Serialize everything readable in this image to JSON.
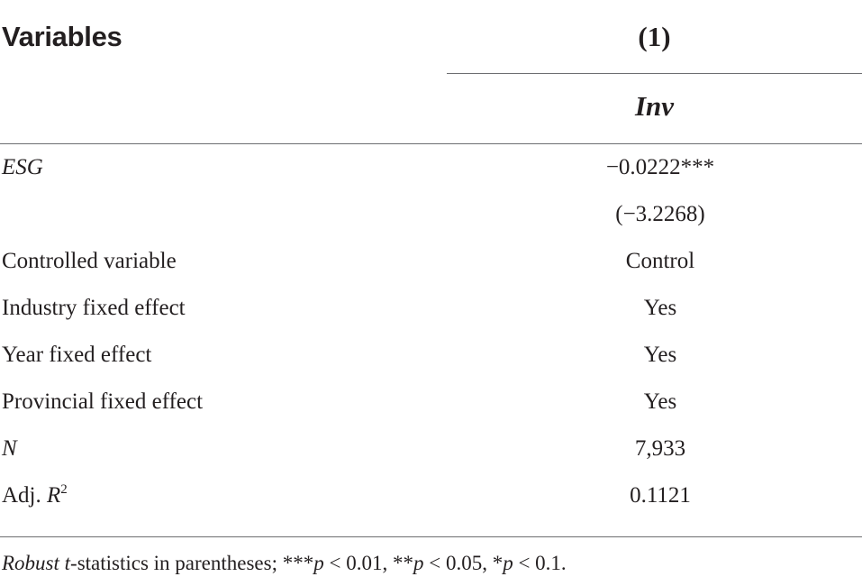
{
  "header": {
    "variables_label": "Variables",
    "column_number": "(1)",
    "dependent_variable": "Inv"
  },
  "rows": [
    {
      "label": "ESG",
      "value": "−0.0222***"
    },
    {
      "label": "",
      "value": "(−3.2268)"
    },
    {
      "label": "Controlled variable",
      "value": "Control"
    },
    {
      "label": "Industry fixed effect",
      "value": "Yes"
    },
    {
      "label": "Year fixed effect",
      "value": "Yes"
    },
    {
      "label": "Provincial fixed effect",
      "value": "Yes"
    },
    {
      "label": "N",
      "value": "7,933"
    },
    {
      "label_prefix": "Adj. ",
      "label_var": "R",
      "label_sup": "2",
      "value": "0.1121"
    }
  ],
  "note": {
    "robust": "Robust",
    "t": "t",
    "text1": "-statistics in parentheses; ***",
    "p1": "p",
    "text2": " < 0.01, **",
    "p2": "p",
    "text3": " < 0.05, *",
    "p3": "p",
    "text4": " < 0.1."
  }
}
